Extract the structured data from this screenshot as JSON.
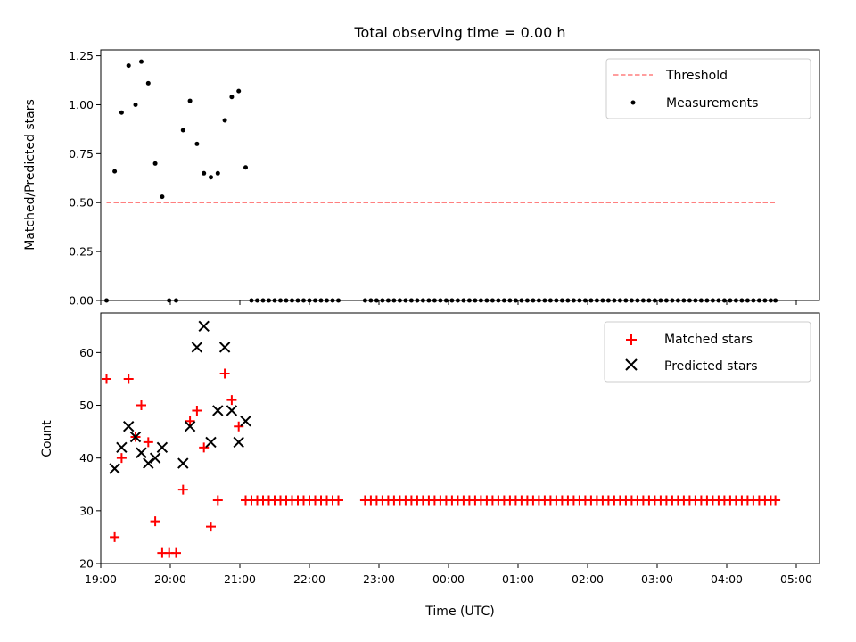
{
  "chart_data": [
    {
      "type": "scatter",
      "title": "Total observing time = 0.00 h",
      "xlabel": "",
      "ylabel": "Matched/Predicted stars",
      "xlim": [
        1140,
        1760
      ],
      "ylim": [
        0.0,
        1.28
      ],
      "yticks": [
        0.0,
        0.25,
        0.5,
        0.75,
        1.0,
        1.25
      ],
      "ytick_labels": [
        "0.00",
        "0.25",
        "0.50",
        "0.75",
        "1.00",
        "1.25"
      ],
      "legend": {
        "position": "top-right",
        "entries": [
          "Threshold",
          "Measurements"
        ]
      },
      "threshold": {
        "name": "Threshold",
        "y": 0.5,
        "x": [
          1145,
          1722
        ],
        "color": "#ff7f7f",
        "style": "dashed"
      },
      "series": [
        {
          "name": "Measurements",
          "color": "#000000",
          "marker": "dot",
          "points": [
            [
              1145,
              0.0
            ],
            [
              1152,
              0.66
            ],
            [
              1158,
              0.96
            ],
            [
              1164,
              1.2
            ],
            [
              1170,
              1.0
            ],
            [
              1175,
              1.22
            ],
            [
              1181,
              1.11
            ],
            [
              1187,
              0.7
            ],
            [
              1193,
              0.53
            ],
            [
              1199,
              0.0
            ],
            [
              1205,
              0.0
            ],
            [
              1211,
              0.87
            ],
            [
              1217,
              1.02
            ],
            [
              1223,
              0.8
            ],
            [
              1229,
              0.65
            ],
            [
              1235,
              0.63
            ],
            [
              1241,
              0.65
            ],
            [
              1247,
              0.92
            ],
            [
              1253,
              1.04
            ],
            [
              1259,
              1.07
            ],
            [
              1265,
              0.68
            ],
            [
              1270,
              0.0
            ],
            [
              1275,
              0.0
            ],
            [
              1280,
              0.0
            ],
            [
              1285,
              0.0
            ],
            [
              1290,
              0.0
            ],
            [
              1295,
              0.0
            ],
            [
              1300,
              0.0
            ],
            [
              1305,
              0.0
            ],
            [
              1310,
              0.0
            ],
            [
              1315,
              0.0
            ],
            [
              1320,
              0.0
            ],
            [
              1325,
              0.0
            ],
            [
              1330,
              0.0
            ],
            [
              1335,
              0.0
            ],
            [
              1340,
              0.0
            ],
            [
              1345,
              0.0
            ],
            [
              1368,
              0.0
            ],
            [
              1373,
              0.0
            ],
            [
              1378,
              0.0
            ],
            [
              1383,
              0.0
            ],
            [
              1388,
              0.0
            ],
            [
              1393,
              0.0
            ],
            [
              1398,
              0.0
            ],
            [
              1403,
              0.0
            ],
            [
              1408,
              0.0
            ],
            [
              1413,
              0.0
            ],
            [
              1418,
              0.0
            ],
            [
              1423,
              0.0
            ],
            [
              1428,
              0.0
            ],
            [
              1433,
              0.0
            ],
            [
              1438,
              0.0
            ],
            [
              1443,
              0.0
            ],
            [
              1448,
              0.0
            ],
            [
              1453,
              0.0
            ],
            [
              1458,
              0.0
            ],
            [
              1463,
              0.0
            ],
            [
              1468,
              0.0
            ],
            [
              1473,
              0.0
            ],
            [
              1478,
              0.0
            ],
            [
              1483,
              0.0
            ],
            [
              1488,
              0.0
            ],
            [
              1493,
              0.0
            ],
            [
              1498,
              0.0
            ],
            [
              1503,
              0.0
            ],
            [
              1508,
              0.0
            ],
            [
              1513,
              0.0
            ],
            [
              1518,
              0.0
            ],
            [
              1523,
              0.0
            ],
            [
              1528,
              0.0
            ],
            [
              1533,
              0.0
            ],
            [
              1538,
              0.0
            ],
            [
              1543,
              0.0
            ],
            [
              1548,
              0.0
            ],
            [
              1553,
              0.0
            ],
            [
              1558,
              0.0
            ],
            [
              1563,
              0.0
            ],
            [
              1568,
              0.0
            ],
            [
              1573,
              0.0
            ],
            [
              1578,
              0.0
            ],
            [
              1583,
              0.0
            ],
            [
              1588,
              0.0
            ],
            [
              1593,
              0.0
            ],
            [
              1598,
              0.0
            ],
            [
              1603,
              0.0
            ],
            [
              1608,
              0.0
            ],
            [
              1613,
              0.0
            ],
            [
              1618,
              0.0
            ],
            [
              1623,
              0.0
            ],
            [
              1628,
              0.0
            ],
            [
              1633,
              0.0
            ],
            [
              1638,
              0.0
            ],
            [
              1643,
              0.0
            ],
            [
              1648,
              0.0
            ],
            [
              1653,
              0.0
            ],
            [
              1658,
              0.0
            ],
            [
              1663,
              0.0
            ],
            [
              1668,
              0.0
            ],
            [
              1673,
              0.0
            ],
            [
              1678,
              0.0
            ],
            [
              1683,
              0.0
            ],
            [
              1688,
              0.0
            ],
            [
              1693,
              0.0
            ],
            [
              1698,
              0.0
            ],
            [
              1703,
              0.0
            ],
            [
              1708,
              0.0
            ],
            [
              1713,
              0.0
            ],
            [
              1718,
              0.0
            ],
            [
              1722,
              0.0
            ]
          ]
        }
      ]
    },
    {
      "type": "scatter",
      "title": "",
      "xlabel": "Time (UTC)",
      "ylabel": "Count",
      "xlim": [
        1140,
        1760
      ],
      "ylim": [
        20,
        67.5
      ],
      "yticks": [
        20,
        30,
        40,
        50,
        60
      ],
      "ytick_labels": [
        "20",
        "30",
        "40",
        "50",
        "60"
      ],
      "xticks": [
        1140,
        1200,
        1260,
        1320,
        1380,
        1440,
        1500,
        1560,
        1620,
        1680,
        1740
      ],
      "xtick_labels": [
        "19:00",
        "20:00",
        "21:00",
        "22:00",
        "23:00",
        "00:00",
        "01:00",
        "02:00",
        "03:00",
        "04:00",
        "05:00"
      ],
      "legend": {
        "position": "top-right",
        "entries": [
          "Matched stars",
          "Predicted stars"
        ]
      },
      "series": [
        {
          "name": "Matched stars",
          "color": "#ff0000",
          "marker": "plus",
          "points": [
            [
              1145,
              55
            ],
            [
              1152,
              25
            ],
            [
              1158,
              40
            ],
            [
              1164,
              55
            ],
            [
              1170,
              44
            ],
            [
              1175,
              50
            ],
            [
              1181,
              43
            ],
            [
              1187,
              28
            ],
            [
              1193,
              22
            ],
            [
              1199,
              22
            ],
            [
              1205,
              22
            ],
            [
              1211,
              34
            ],
            [
              1217,
              47
            ],
            [
              1223,
              49
            ],
            [
              1229,
              42
            ],
            [
              1235,
              27
            ],
            [
              1241,
              32
            ],
            [
              1247,
              56
            ],
            [
              1253,
              51
            ],
            [
              1259,
              46
            ],
            [
              1265,
              32
            ],
            [
              1270,
              32
            ],
            [
              1275,
              32
            ],
            [
              1280,
              32
            ],
            [
              1285,
              32
            ],
            [
              1290,
              32
            ],
            [
              1295,
              32
            ],
            [
              1300,
              32
            ],
            [
              1305,
              32
            ],
            [
              1310,
              32
            ],
            [
              1315,
              32
            ],
            [
              1320,
              32
            ],
            [
              1325,
              32
            ],
            [
              1330,
              32
            ],
            [
              1335,
              32
            ],
            [
              1340,
              32
            ],
            [
              1345,
              32
            ],
            [
              1368,
              32
            ],
            [
              1373,
              32
            ],
            [
              1378,
              32
            ],
            [
              1383,
              32
            ],
            [
              1388,
              32
            ],
            [
              1393,
              32
            ],
            [
              1398,
              32
            ],
            [
              1403,
              32
            ],
            [
              1408,
              32
            ],
            [
              1413,
              32
            ],
            [
              1418,
              32
            ],
            [
              1423,
              32
            ],
            [
              1428,
              32
            ],
            [
              1433,
              32
            ],
            [
              1438,
              32
            ],
            [
              1443,
              32
            ],
            [
              1448,
              32
            ],
            [
              1453,
              32
            ],
            [
              1458,
              32
            ],
            [
              1463,
              32
            ],
            [
              1468,
              32
            ],
            [
              1473,
              32
            ],
            [
              1478,
              32
            ],
            [
              1483,
              32
            ],
            [
              1488,
              32
            ],
            [
              1493,
              32
            ],
            [
              1498,
              32
            ],
            [
              1503,
              32
            ],
            [
              1508,
              32
            ],
            [
              1513,
              32
            ],
            [
              1518,
              32
            ],
            [
              1523,
              32
            ],
            [
              1528,
              32
            ],
            [
              1533,
              32
            ],
            [
              1538,
              32
            ],
            [
              1543,
              32
            ],
            [
              1548,
              32
            ],
            [
              1553,
              32
            ],
            [
              1558,
              32
            ],
            [
              1563,
              32
            ],
            [
              1568,
              32
            ],
            [
              1573,
              32
            ],
            [
              1578,
              32
            ],
            [
              1583,
              32
            ],
            [
              1588,
              32
            ],
            [
              1593,
              32
            ],
            [
              1598,
              32
            ],
            [
              1603,
              32
            ],
            [
              1608,
              32
            ],
            [
              1613,
              32
            ],
            [
              1618,
              32
            ],
            [
              1623,
              32
            ],
            [
              1628,
              32
            ],
            [
              1633,
              32
            ],
            [
              1638,
              32
            ],
            [
              1643,
              32
            ],
            [
              1648,
              32
            ],
            [
              1653,
              32
            ],
            [
              1658,
              32
            ],
            [
              1663,
              32
            ],
            [
              1668,
              32
            ],
            [
              1673,
              32
            ],
            [
              1678,
              32
            ],
            [
              1683,
              32
            ],
            [
              1688,
              32
            ],
            [
              1693,
              32
            ],
            [
              1698,
              32
            ],
            [
              1703,
              32
            ],
            [
              1708,
              32
            ],
            [
              1713,
              32
            ],
            [
              1718,
              32
            ],
            [
              1722,
              32
            ]
          ]
        },
        {
          "name": "Predicted stars",
          "color": "#000000",
          "marker": "x",
          "points": [
            [
              1152,
              38
            ],
            [
              1158,
              42
            ],
            [
              1164,
              46
            ],
            [
              1170,
              44
            ],
            [
              1175,
              41
            ],
            [
              1181,
              39
            ],
            [
              1187,
              40
            ],
            [
              1193,
              42
            ],
            [
              1211,
              39
            ],
            [
              1217,
              46
            ],
            [
              1223,
              61
            ],
            [
              1229,
              65
            ],
            [
              1235,
              43
            ],
            [
              1241,
              49
            ],
            [
              1247,
              61
            ],
            [
              1253,
              49
            ],
            [
              1259,
              43
            ],
            [
              1265,
              47
            ]
          ]
        }
      ]
    }
  ]
}
